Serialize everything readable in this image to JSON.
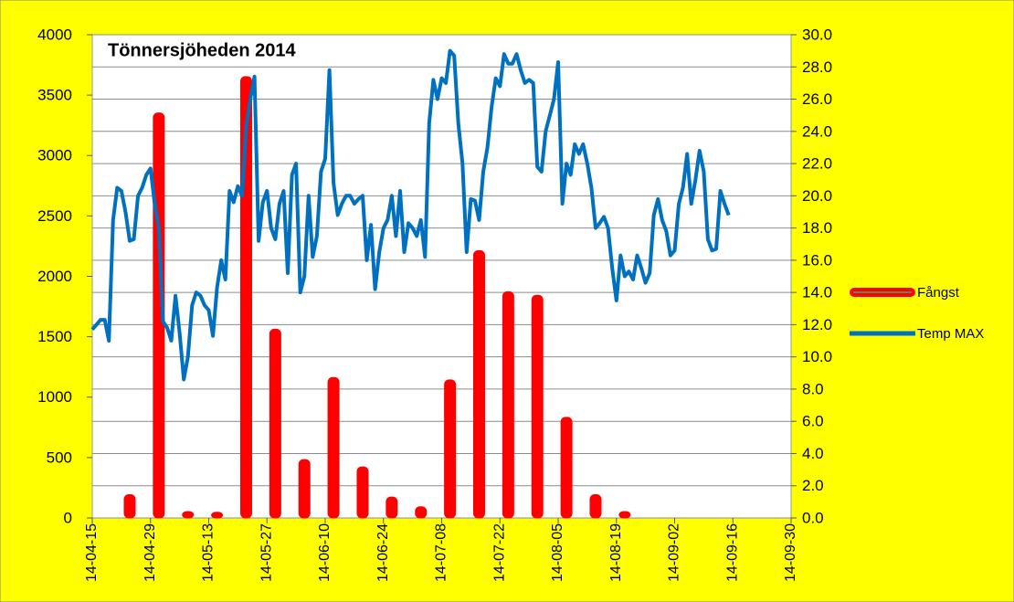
{
  "chart_data": {
    "type": "combo",
    "title": "Tönnersjöheden 2014",
    "xlim": [
      "14-04-15",
      "14-09-30"
    ],
    "xticks": [
      "14-04-15",
      "14-04-29",
      "14-05-13",
      "14-05-27",
      "14-06-10",
      "14-06-24",
      "14-07-08",
      "14-07-22",
      "14-08-05",
      "14-08-19",
      "14-09-02",
      "14-09-16",
      "14-09-30"
    ],
    "ylim": [
      0,
      4000
    ],
    "yticks": [
      0,
      500,
      1000,
      1500,
      2000,
      2500,
      3000,
      3500,
      4000
    ],
    "y2lim": [
      0,
      30
    ],
    "y2ticks": [
      {
        "value": 0,
        "label": "0.0"
      },
      {
        "value": 2,
        "label": "2.0"
      },
      {
        "value": 4,
        "label": "4.0"
      },
      {
        "value": 6,
        "label": "6.0"
      },
      {
        "value": 8,
        "label": "8.0"
      },
      {
        "value": 10,
        "label": "10.0"
      },
      {
        "value": 12,
        "label": "12.0"
      },
      {
        "value": 14,
        "label": "14.0"
      },
      {
        "value": 16,
        "label": "16.0"
      },
      {
        "value": 18,
        "label": "18.0"
      },
      {
        "value": 20,
        "label": "20.0"
      },
      {
        "value": 22,
        "label": "22.0"
      },
      {
        "value": 24,
        "label": "24.0"
      },
      {
        "value": 26,
        "label": "26.0"
      },
      {
        "value": 28,
        "label": "28.0"
      },
      {
        "value": 30,
        "label": "30.0"
      }
    ],
    "grid": true,
    "series": [
      {
        "name": "Fångst",
        "type": "bar",
        "color": "#ff0000",
        "x": [
          "14-04-24",
          "14-05-01",
          "14-05-08",
          "14-05-15",
          "14-05-22",
          "14-05-29",
          "14-06-05",
          "14-06-12",
          "14-06-19",
          "14-06-26",
          "14-07-03",
          "14-07-10",
          "14-07-17",
          "14-07-24",
          "14-07-31",
          "14-08-07",
          "14-08-14",
          "14-08-21"
        ],
        "values": [
          170,
          3330,
          30,
          25,
          3630,
          1540,
          460,
          1140,
          400,
          150,
          70,
          1120,
          2190,
          1850,
          1820,
          810,
          170,
          30
        ]
      },
      {
        "name": "Temp MAX",
        "type": "line",
        "axis": "y2",
        "color": "#0070c0",
        "x": [
          "14-04-15",
          "14-04-16",
          "14-04-17",
          "14-04-18",
          "14-04-19",
          "14-04-20",
          "14-04-21",
          "14-04-22",
          "14-04-23",
          "14-04-24",
          "14-04-25",
          "14-04-26",
          "14-04-27",
          "14-04-28",
          "14-04-29",
          "14-04-30",
          "14-05-01",
          "14-05-02",
          "14-05-03",
          "14-05-04",
          "14-05-05",
          "14-05-06",
          "14-05-07",
          "14-05-08",
          "14-05-09",
          "14-05-10",
          "14-05-11",
          "14-05-12",
          "14-05-13",
          "14-05-14",
          "14-05-15",
          "14-05-16",
          "14-05-17",
          "14-05-18",
          "14-05-19",
          "14-05-20",
          "14-05-21",
          "14-05-22",
          "14-05-23",
          "14-05-24",
          "14-05-25",
          "14-05-26",
          "14-05-27",
          "14-05-28",
          "14-05-29",
          "14-05-30",
          "14-05-31",
          "14-06-01",
          "14-06-02",
          "14-06-03",
          "14-06-04",
          "14-06-05",
          "14-06-06",
          "14-06-07",
          "14-06-08",
          "14-06-09",
          "14-06-10",
          "14-06-11",
          "14-06-12",
          "14-06-13",
          "14-06-14",
          "14-06-15",
          "14-06-16",
          "14-06-17",
          "14-06-18",
          "14-06-19",
          "14-06-20",
          "14-06-21",
          "14-06-22",
          "14-06-23",
          "14-06-24",
          "14-06-25",
          "14-06-26",
          "14-06-27",
          "14-06-28",
          "14-06-29",
          "14-06-30",
          "14-07-01",
          "14-07-02",
          "14-07-03",
          "14-07-04",
          "14-07-05",
          "14-07-06",
          "14-07-07",
          "14-07-08",
          "14-07-09",
          "14-07-10",
          "14-07-11",
          "14-07-12",
          "14-07-13",
          "14-07-14",
          "14-07-15",
          "14-07-16",
          "14-07-17",
          "14-07-18",
          "14-07-19",
          "14-07-20",
          "14-07-21",
          "14-07-22",
          "14-07-23",
          "14-07-24",
          "14-07-25",
          "14-07-26",
          "14-07-27",
          "14-07-28",
          "14-07-29",
          "14-07-30",
          "14-07-31",
          "14-08-01",
          "14-08-02",
          "14-08-03",
          "14-08-04",
          "14-08-05",
          "14-08-06",
          "14-08-07",
          "14-08-08",
          "14-08-09",
          "14-08-10",
          "14-08-11",
          "14-08-12",
          "14-08-13",
          "14-08-14",
          "14-08-15",
          "14-08-16",
          "14-08-17",
          "14-08-18",
          "14-08-19",
          "14-08-20",
          "14-08-21",
          "14-08-22",
          "14-08-23",
          "14-08-24",
          "14-08-25",
          "14-08-26",
          "14-08-27",
          "14-08-28",
          "14-08-29",
          "14-08-30",
          "14-08-31",
          "14-09-01",
          "14-09-02",
          "14-09-03",
          "14-09-04",
          "14-09-05",
          "14-09-06",
          "14-09-07",
          "14-09-08",
          "14-09-09",
          "14-09-10",
          "14-09-11",
          "14-09-12",
          "14-09-13",
          "14-09-14",
          "14-09-15"
        ],
        "values": [
          11.7,
          12.0,
          12.3,
          12.3,
          11.0,
          18.5,
          20.5,
          20.3,
          19.0,
          17.2,
          17.3,
          20.0,
          20.5,
          21.3,
          21.7,
          19.5,
          18.0,
          12.2,
          11.8,
          11.0,
          13.8,
          11.5,
          8.6,
          10.0,
          13.2,
          14.0,
          13.8,
          13.2,
          12.9,
          11.3,
          14.3,
          16.0,
          14.8,
          20.3,
          19.6,
          20.6,
          20.0,
          24.3,
          26.0,
          27.4,
          17.2,
          19.6,
          20.3,
          18.0,
          17.3,
          19.5,
          20.3,
          15.2,
          21.3,
          22.0,
          14.0,
          15.0,
          20.0,
          16.2,
          17.5,
          21.5,
          22.3,
          27.8,
          20.8,
          18.8,
          19.5,
          20.0,
          20.0,
          19.5,
          19.8,
          20.0,
          16.0,
          18.2,
          14.2,
          16.5,
          18.0,
          18.5,
          20.0,
          17.5,
          20.3,
          16.5,
          18.3,
          18.0,
          17.5,
          18.5,
          16.2,
          24.5,
          27.2,
          26.0,
          27.3,
          27.0,
          29.0,
          28.7,
          24.5,
          22.0,
          16.5,
          19.8,
          19.7,
          18.5,
          21.5,
          23.0,
          25.5,
          27.3,
          26.8,
          28.8,
          28.2,
          28.2,
          28.8,
          27.8,
          27.0,
          27.2,
          27.0,
          21.8,
          21.5,
          24.0,
          25.0,
          26.0,
          28.3,
          19.5,
          22.0,
          21.3,
          23.2,
          22.6,
          23.2,
          22.0,
          20.5,
          18.0,
          18.3,
          18.7,
          18.0,
          15.5,
          13.5,
          16.3,
          15.0,
          15.3,
          14.8,
          16.3,
          15.5,
          14.6,
          15.2,
          18.8,
          19.8,
          18.5,
          17.8,
          16.3,
          16.6,
          19.5,
          20.5,
          22.6,
          19.5,
          21.0,
          22.8,
          21.5,
          17.3,
          16.6,
          16.7,
          20.3,
          19.5,
          18.8
        ]
      }
    ]
  }
}
